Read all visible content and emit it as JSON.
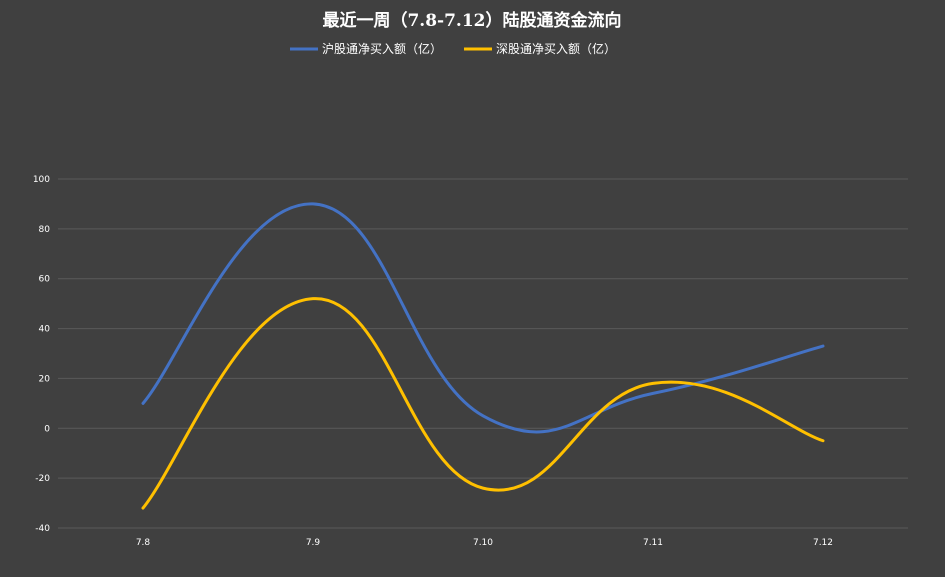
{
  "chart_data": {
    "type": "line",
    "title": "最近一周（7.8-7.12）陆股通资金流向",
    "categories": [
      "7.8",
      "7.9",
      "7.10",
      "7.11",
      "7.12"
    ],
    "series": [
      {
        "name": "沪股通净买入额（亿）",
        "values": [
          10,
          90,
          5,
          14,
          33
        ],
        "color": "#4472c4"
      },
      {
        "name": "深股通净买入额（亿）",
        "values": [
          -32,
          52,
          -24,
          18,
          -5
        ],
        "color": "#ffc000"
      }
    ],
    "ylim": [
      -40,
      100
    ],
    "yticks": [
      -40,
      -20,
      0,
      20,
      40,
      60,
      80,
      100
    ],
    "smooth": true,
    "grid": true,
    "legend": "top"
  }
}
